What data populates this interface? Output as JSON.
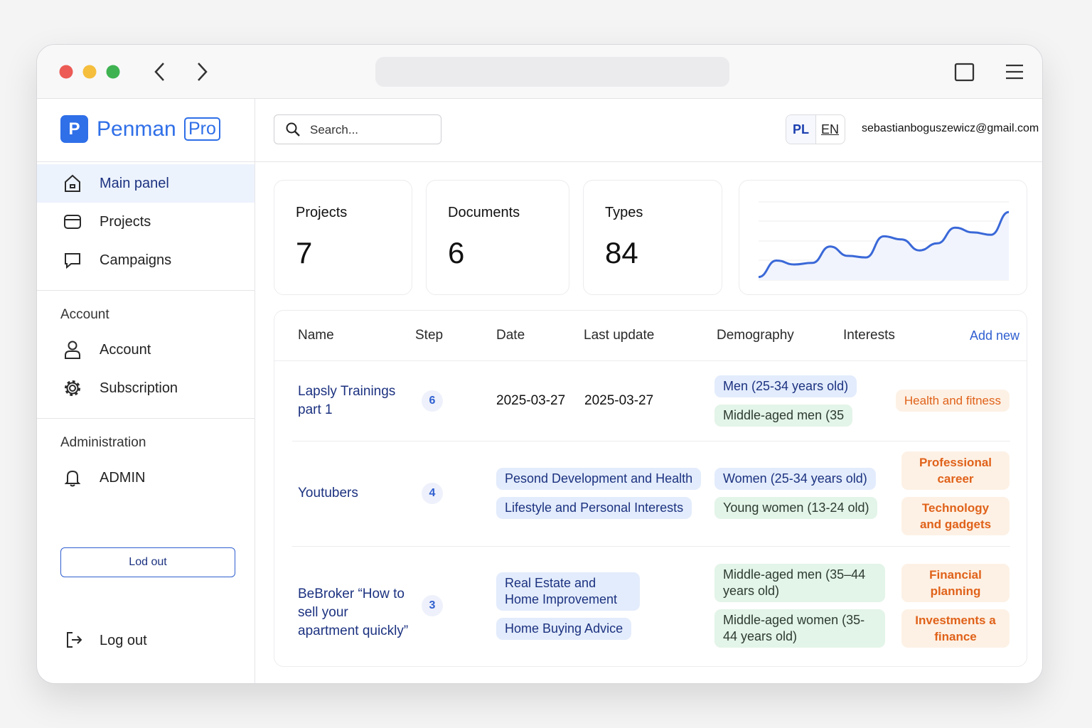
{
  "sidebar": {
    "brand": {
      "logo": "P",
      "name": "Penman",
      "badge": "Pro"
    },
    "nav": [
      "Main panel",
      "Projects",
      "Campaigns"
    ],
    "sections": [
      {
        "title": "Account",
        "items": [
          "Account",
          "Subscription"
        ]
      },
      {
        "title": "Administration",
        "items": [
          "ADMIN"
        ]
      }
    ],
    "logout_button": "Lod out",
    "footer_logout": "Log out"
  },
  "header": {
    "search_placeholder": "Search...",
    "languages": [
      "PL",
      "EN"
    ],
    "email": "sebastianboguszewicz@gmail.com"
  },
  "stats": [
    {
      "label": "Projects",
      "value": 7
    },
    {
      "label": "Documents",
      "value": 6
    },
    {
      "label": "Types",
      "value": 84
    }
  ],
  "sparkline": {
    "type": "line",
    "color": "#3a68d8",
    "ylim": [
      0,
      100
    ],
    "values": [
      4,
      25,
      20,
      22,
      43,
      31,
      29,
      56,
      52,
      38,
      47,
      67,
      61,
      58,
      87
    ]
  },
  "table": {
    "headers": [
      "Name",
      "Step",
      "Date",
      "Last update",
      "Demography",
      "Interests"
    ],
    "add_new": "Add new",
    "rows": [
      {
        "name": "Lapsly Trainings part 1",
        "step": 6,
        "date": "2025-03-27",
        "last_update": "2025-03-27",
        "demography": [
          {
            "text": "Men (25-34 years old)",
            "tone": "blue"
          },
          {
            "text": "Middle-aged men (35",
            "tone": "green"
          }
        ],
        "interests": [
          "Health and fitness"
        ]
      },
      {
        "name": "Youtubers",
        "step": 4,
        "topics": [
          "Pesond Development and Health",
          "Lifestyle and Personal Interests"
        ],
        "demography": [
          {
            "text": "Women (25-34 years old)",
            "tone": "blue"
          },
          {
            "text": "Young women (13-24 old)",
            "tone": "green"
          }
        ],
        "interests": [
          "Professional career",
          "Technology and gadgets"
        ]
      },
      {
        "name": "BeBroker “How to sell your apartment quickly”",
        "step": 3,
        "topics": [
          "Real Estate and Home Improvement",
          "Home Buying Advice"
        ],
        "demography": [
          {
            "text": "Middle-aged men (35–44 years old)",
            "tone": "green"
          },
          {
            "text": "Middle-aged women (35-44 years old)",
            "tone": "green"
          }
        ],
        "interests": [
          "Financial planning",
          "Investments a finance"
        ]
      }
    ]
  }
}
